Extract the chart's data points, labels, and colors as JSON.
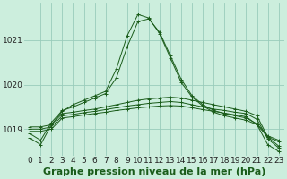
{
  "bg_color": "#cceedd",
  "grid_color": "#99ccbb",
  "line_color": "#1a5c1a",
  "title": "Graphe pression niveau de la mer (hPa)",
  "xlim": [
    -0.5,
    23.5
  ],
  "ylim": [
    1018.4,
    1021.85
  ],
  "xticks": [
    0,
    1,
    2,
    3,
    4,
    5,
    6,
    7,
    8,
    9,
    10,
    11,
    12,
    13,
    14,
    15,
    16,
    17,
    18,
    19,
    20,
    21,
    22,
    23
  ],
  "yticks": [
    1019,
    1020,
    1021
  ],
  "series": [
    {
      "x": [
        0,
        1,
        2,
        3,
        4,
        5,
        6,
        7,
        8,
        9,
        10,
        11,
        12,
        13,
        14,
        15,
        16,
        17,
        18,
        19,
        20,
        21,
        22,
        23
      ],
      "y": [
        1018.8,
        1018.65,
        1019.1,
        1019.4,
        1019.55,
        1019.65,
        1019.75,
        1019.85,
        1020.35,
        1021.1,
        1021.58,
        1021.5,
        1021.15,
        1020.6,
        1020.05,
        1019.72,
        1019.52,
        1019.38,
        1019.3,
        1019.25,
        1019.2,
        1019.1,
        1018.82,
        1018.72
      ]
    },
    {
      "x": [
        0,
        1,
        2,
        3,
        4,
        5,
        6,
        7,
        8,
        9,
        10,
        11,
        12,
        13,
        14,
        15,
        16,
        17,
        18,
        19,
        20,
        21,
        22,
        23
      ],
      "y": [
        1018.9,
        1018.75,
        1019.15,
        1019.42,
        1019.5,
        1019.6,
        1019.7,
        1019.8,
        1020.15,
        1020.85,
        1021.42,
        1021.48,
        1021.18,
        1020.65,
        1020.12,
        1019.75,
        1019.55,
        1019.42,
        1019.35,
        1019.3,
        1019.25,
        1019.12,
        1018.85,
        1018.75
      ]
    },
    {
      "x": [
        0,
        1,
        2,
        3,
        4,
        5,
        6,
        7,
        8,
        9,
        10,
        11,
        12,
        13,
        14,
        15,
        16,
        17,
        18,
        19,
        20,
        21,
        22,
        23
      ],
      "y": [
        1019.05,
        1019.05,
        1019.1,
        1019.35,
        1019.38,
        1019.42,
        1019.45,
        1019.5,
        1019.55,
        1019.6,
        1019.65,
        1019.68,
        1019.7,
        1019.72,
        1019.7,
        1019.65,
        1019.6,
        1019.55,
        1019.5,
        1019.45,
        1019.4,
        1019.3,
        1018.82,
        1018.62
      ]
    },
    {
      "x": [
        0,
        1,
        2,
        3,
        4,
        5,
        6,
        7,
        8,
        9,
        10,
        11,
        12,
        13,
        14,
        15,
        16,
        17,
        18,
        19,
        20,
        21,
        22,
        23
      ],
      "y": [
        1019.0,
        1019.0,
        1019.05,
        1019.3,
        1019.33,
        1019.37,
        1019.4,
        1019.44,
        1019.48,
        1019.52,
        1019.55,
        1019.58,
        1019.6,
        1019.62,
        1019.6,
        1019.55,
        1019.5,
        1019.45,
        1019.42,
        1019.38,
        1019.35,
        1019.22,
        1018.78,
        1018.58
      ]
    },
    {
      "x": [
        0,
        1,
        2,
        3,
        4,
        5,
        6,
        7,
        8,
        9,
        10,
        11,
        12,
        13,
        14,
        15,
        16,
        17,
        18,
        19,
        20,
        21,
        22,
        23
      ],
      "y": [
        1018.95,
        1018.95,
        1019.0,
        1019.25,
        1019.28,
        1019.32,
        1019.35,
        1019.38,
        1019.42,
        1019.45,
        1019.48,
        1019.5,
        1019.52,
        1019.53,
        1019.52,
        1019.48,
        1019.44,
        1019.4,
        1019.36,
        1019.32,
        1019.28,
        1019.1,
        1018.65,
        1018.5
      ]
    }
  ],
  "title_fontsize": 8,
  "tick_fontsize": 6.5
}
